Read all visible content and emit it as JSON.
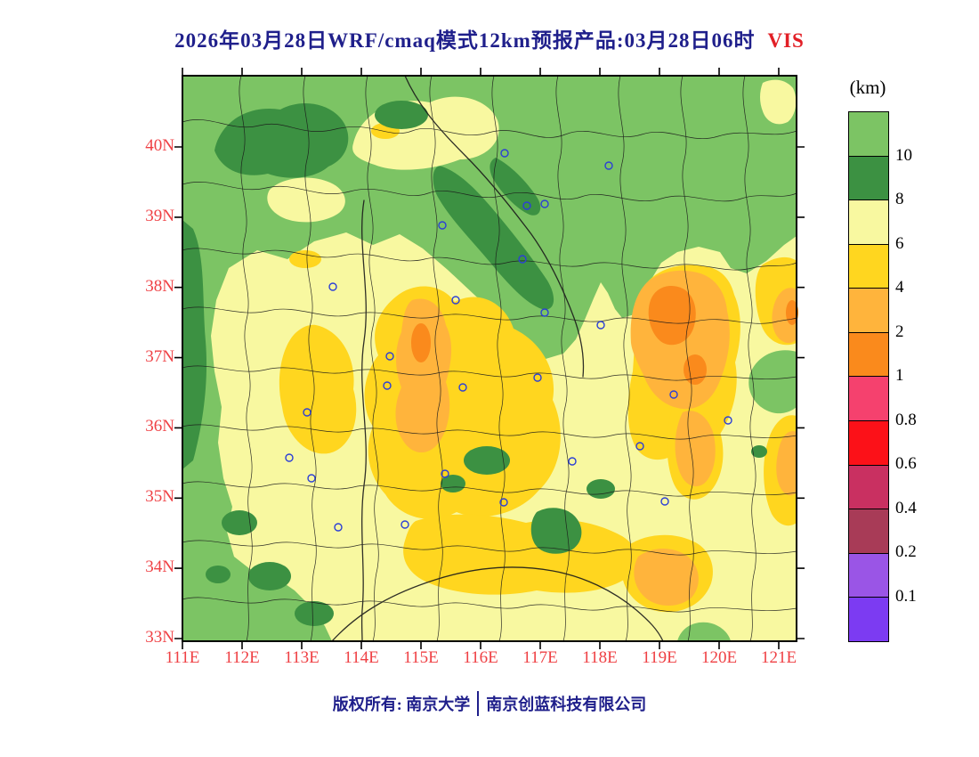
{
  "title": {
    "text": "2026年03月28日WRF/cmaq模式12km预报产品:03月28日06时",
    "variable": "VIS"
  },
  "axes": {
    "lat": [
      "40N",
      "39N",
      "38N",
      "37N",
      "36N",
      "35N",
      "34N",
      "33N"
    ],
    "lon": [
      "111E",
      "112E",
      "113E",
      "114E",
      "115E",
      "116E",
      "117E",
      "118E",
      "119E",
      "120E",
      "121E"
    ]
  },
  "legend": {
    "unit": "(km)",
    "ticks": [
      "10",
      "8",
      "6",
      "4",
      "2",
      "1",
      "0.8",
      "0.6",
      "0.4",
      "0.2",
      "0.1"
    ],
    "colors": [
      "#7cc464",
      "#3c9142",
      "#f8f8a0",
      "#ffd61f",
      "#ffb43c",
      "#fa8a1c",
      "#f5416e",
      "#fc1118",
      "#c93061",
      "#a83b57",
      "#9a55e6",
      "#7c3bf2"
    ]
  },
  "footer": {
    "left": "版权所有: 南京大学",
    "right": "南京创蓝科技有限公司"
  },
  "colors": {
    "title": "#1f1f8b",
    "axis": "#ef4044",
    "variable": "#e21f26",
    "city_marker": "#2b3fd6",
    "boundary": "#1a1a1a"
  }
}
